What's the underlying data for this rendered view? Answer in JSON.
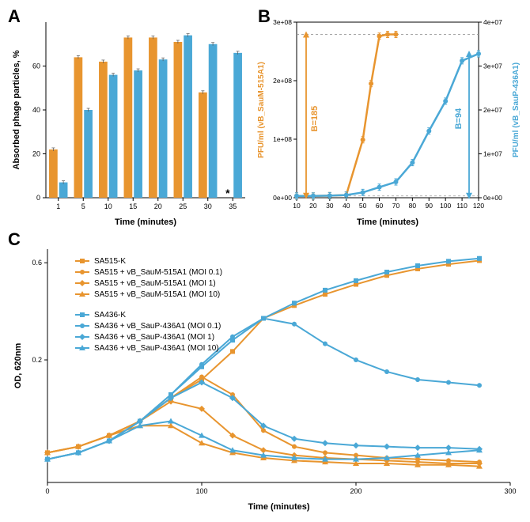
{
  "panelA": {
    "label": "A",
    "type": "bar",
    "xlabel": "Time (minutes)",
    "ylabel": "Absorbed phage particles, %",
    "categories": [
      "1",
      "5",
      "10",
      "15",
      "20",
      "25",
      "30",
      "35"
    ],
    "series1_values": [
      22,
      64,
      62,
      73,
      73,
      71,
      48,
      null
    ],
    "series2_values": [
      7,
      40,
      56,
      58,
      63,
      74,
      70,
      66
    ],
    "series1_color": "#e8952f",
    "series2_color": "#4aa8d6",
    "ylim": [
      0,
      80
    ],
    "yticks": [
      0,
      20,
      40,
      60
    ],
    "star_x_category": "35",
    "error_bar_color": "#555555",
    "background": "#ffffff"
  },
  "panelB": {
    "label": "B",
    "type": "line",
    "xlabel": "Time (minutes)",
    "ylabel_left": "PFU/ml (vB_SauM-515A1)",
    "ylabel_right": "PFU/ml (vB_SauP-436A1)",
    "xticks": [
      "10",
      "20",
      "30",
      "40",
      "50",
      "60",
      "70",
      "80",
      "90",
      "100",
      "110",
      "120"
    ],
    "yticks_left": [
      "0e+00",
      "1e+08",
      "2e+08",
      "3e+08"
    ],
    "yticks_right": [
      "0e+00",
      "1e+07",
      "2e+07",
      "3e+07",
      "4e+07"
    ],
    "series1": {
      "color": "#e8952f",
      "x": [
        10,
        20,
        30,
        40,
        50,
        55,
        60,
        65,
        70
      ],
      "y": [
        0.01,
        0.01,
        0.012,
        0.015,
        0.33,
        0.65,
        0.92,
        0.93,
        0.93
      ],
      "burst_label": "B=185"
    },
    "series2": {
      "color": "#4aa8d6",
      "x": [
        10,
        20,
        30,
        40,
        50,
        60,
        70,
        80,
        90,
        100,
        110,
        120
      ],
      "y": [
        0.01,
        0.01,
        0.012,
        0.015,
        0.03,
        0.06,
        0.09,
        0.2,
        0.38,
        0.55,
        0.78,
        0.82
      ],
      "burst_label": "B=94"
    },
    "dashed_line_color": "#999999"
  },
  "panelC": {
    "label": "C",
    "type": "line",
    "xlabel": "Time (minutes)",
    "ylabel": "OD, 620nm",
    "xticks": [
      "0",
      "100",
      "200",
      "300"
    ],
    "yticks": [
      "0.2",
      "0.6"
    ],
    "colors": {
      "orange": "#e8952f",
      "blue": "#4aa8d6"
    },
    "legend": [
      {
        "label": "SA515-K",
        "color": "#e8952f",
        "marker": "square"
      },
      {
        "label": "SA515 + vB_SauM-515A1 (MOI 0.1)",
        "color": "#e8952f",
        "marker": "circle"
      },
      {
        "label": "SA515 + vB_SauM-515A1 (MOI 1)",
        "color": "#e8952f",
        "marker": "diamond"
      },
      {
        "label": "SA515 + vB_SauM-515A1 (MOI 10)",
        "color": "#e8952f",
        "marker": "triangle"
      },
      {
        "label": "SA436-K",
        "color": "#4aa8d6",
        "marker": "square"
      },
      {
        "label": "SA436 + vB_SauP-436A1 (MOI 0.1)",
        "color": "#4aa8d6",
        "marker": "circle"
      },
      {
        "label": "SA436 + vB_SauP-436A1 (MOI 1)",
        "color": "#4aa8d6",
        "marker": "diamond"
      },
      {
        "label": "SA436 + vB_SauP-436A1 (MOI 10)",
        "color": "#4aa8d6",
        "marker": "triangle"
      }
    ],
    "curves": {
      "SA515K": {
        "color": "#e8952f",
        "marker": "square",
        "y": [
          0.07,
          0.075,
          0.085,
          0.1,
          0.13,
          0.16,
          0.22,
          0.32,
          0.37,
          0.42,
          0.47,
          0.52,
          0.56,
          0.59,
          0.615
        ]
      },
      "SA515_01": {
        "color": "#e8952f",
        "marker": "circle",
        "y": [
          0.07,
          0.075,
          0.085,
          0.1,
          0.13,
          0.165,
          0.135,
          0.09,
          0.075,
          0.07,
          0.068,
          0.066,
          0.065,
          0.064,
          0.063
        ]
      },
      "SA515_1": {
        "color": "#e8952f",
        "marker": "diamond",
        "y": [
          0.07,
          0.075,
          0.085,
          0.1,
          0.125,
          0.115,
          0.085,
          0.072,
          0.068,
          0.066,
          0.065,
          0.064,
          0.063,
          0.062,
          0.062
        ]
      },
      "SA515_10": {
        "color": "#e8952f",
        "marker": "triangle",
        "y": [
          0.07,
          0.075,
          0.085,
          0.095,
          0.095,
          0.078,
          0.07,
          0.066,
          0.064,
          0.063,
          0.062,
          0.062,
          0.061,
          0.061,
          0.06
        ]
      },
      "SA436K": {
        "color": "#4aa8d6",
        "marker": "square",
        "y": [
          0.065,
          0.07,
          0.08,
          0.1,
          0.135,
          0.185,
          0.25,
          0.32,
          0.38,
          0.44,
          0.49,
          0.54,
          0.58,
          0.61,
          0.63
        ]
      },
      "SA436_01": {
        "color": "#4aa8d6",
        "marker": "circle",
        "y": [
          0.065,
          0.07,
          0.08,
          0.1,
          0.135,
          0.19,
          0.26,
          0.32,
          0.3,
          0.24,
          0.2,
          0.175,
          0.16,
          0.155,
          0.15
        ]
      },
      "SA436_1": {
        "color": "#4aa8d6",
        "marker": "diamond",
        "y": [
          0.065,
          0.07,
          0.08,
          0.1,
          0.13,
          0.155,
          0.13,
          0.095,
          0.082,
          0.078,
          0.076,
          0.075,
          0.074,
          0.074,
          0.073
        ]
      },
      "SA436_10": {
        "color": "#4aa8d6",
        "marker": "triangle",
        "y": [
          0.065,
          0.07,
          0.08,
          0.095,
          0.1,
          0.085,
          0.072,
          0.068,
          0.066,
          0.065,
          0.065,
          0.066,
          0.068,
          0.07,
          0.072
        ]
      }
    },
    "x_values": [
      0,
      20,
      40,
      60,
      80,
      100,
      120,
      140,
      160,
      180,
      200,
      220,
      240,
      260,
      280
    ]
  }
}
